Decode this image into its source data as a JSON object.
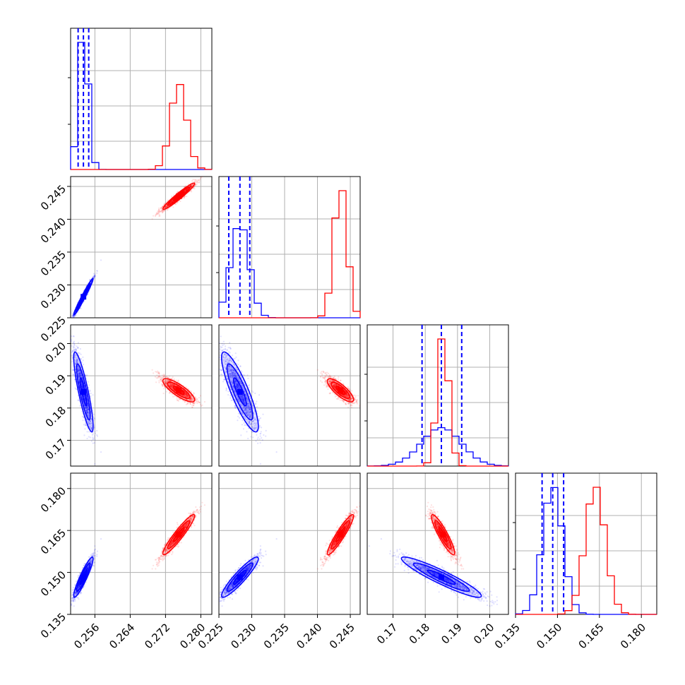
{
  "chart_data": {
    "type": "scatter",
    "subtype": "corner-plot",
    "title": "",
    "grid": true,
    "legend": "none",
    "colors": {
      "series_a": "#0000ff",
      "series_b": "#ff0000",
      "grid": "#b0b0b0",
      "frame": "#000000"
    },
    "parameters": [
      {
        "index": 0,
        "range": [
          0.2505,
          0.2825
        ],
        "ticks": [
          "0.256",
          "0.264",
          "0.272",
          "0.280"
        ],
        "tick_values": [
          0.256,
          0.264,
          0.272,
          0.28
        ]
      },
      {
        "index": 1,
        "range": [
          0.225,
          0.2465
        ],
        "ticks": [
          "0.225",
          "0.230",
          "0.235",
          "0.240",
          "0.245"
        ],
        "tick_values": [
          0.225,
          0.23,
          0.235,
          0.24,
          0.245
        ]
      },
      {
        "index": 2,
        "range": [
          0.162,
          0.2058
        ],
        "ticks": [
          "0.17",
          "0.18",
          "0.19",
          "0.20"
        ],
        "tick_values": [
          0.17,
          0.18,
          0.19,
          0.2
        ]
      },
      {
        "index": 3,
        "range": [
          0.135,
          0.1855
        ],
        "ticks": [
          "0.135",
          "0.150",
          "0.165",
          "0.180"
        ],
        "tick_values": [
          0.135,
          0.15,
          0.165,
          0.18
        ]
      }
    ],
    "series": [
      {
        "color": "#0000ff",
        "mean": [
          0.2534,
          0.2282,
          0.185,
          0.1483
        ],
        "std": [
          0.0011,
          0.0014,
          0.0062,
          0.0036
        ],
        "quantiles": [
          [
            0.2522,
            0.2534,
            0.2546
          ],
          [
            0.2265,
            0.2282,
            0.2297
          ],
          [
            0.179,
            0.185,
            0.1913
          ],
          [
            0.1445,
            0.1483,
            0.1522
          ]
        ],
        "corr": [
          [
            1,
            0.98,
            -0.86,
            0.92
          ],
          [
            0.98,
            1,
            -0.86,
            0.92
          ],
          [
            -0.86,
            -0.86,
            1,
            -0.93
          ],
          [
            0.92,
            0.92,
            -0.93,
            1
          ]
        ]
      },
      {
        "color": "#ff0000",
        "mean": [
          0.275,
          0.2435,
          0.1855,
          0.1635
        ],
        "std": [
          0.0018,
          0.001,
          0.0018,
          0.0036
        ],
        "corr": [
          [
            1,
            0.96,
            -0.82,
            0.94
          ],
          [
            0.96,
            1,
            -0.8,
            0.93
          ],
          [
            -0.82,
            -0.8,
            1,
            -0.9
          ],
          [
            0.94,
            0.93,
            -0.9,
            1
          ]
        ]
      }
    ]
  }
}
